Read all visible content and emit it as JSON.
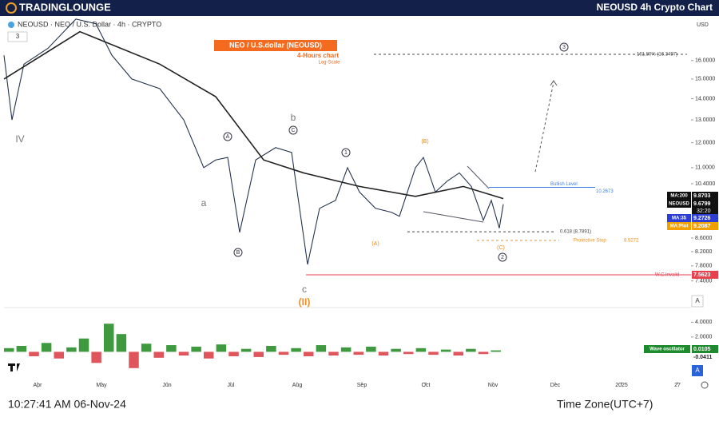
{
  "header": {
    "brand": "TradingLounge",
    "title": "NEOUSD 4h Crypto Chart"
  },
  "chart_data": {
    "type": "line",
    "log_scale": true,
    "legend_text": "NEOUSD · NEO / U.S. Dollar · 4h · CRYPTO",
    "indicator_count": "3",
    "title": "NEO / U.S.dollar (NEOUSD)",
    "subtitle": "4-Hours chart",
    "scale_note": "Log-Scale",
    "axis_unit": "USD",
    "series": [
      {
        "name": "NEOUSD",
        "color": "#26344f",
        "x": [
          0,
          0.8,
          2,
          4.4,
          7.2,
          9.2,
          10.8,
          12.8,
          15.6,
          18,
          20,
          21.2,
          22.4,
          23.6,
          25.2,
          27.2,
          28.8,
          30.4,
          31.6,
          33.2,
          34.4,
          35.6,
          37.2,
          38.8,
          39.6,
          41.2,
          42,
          43.2,
          44.4,
          45.6,
          46.8,
          48,
          48.8,
          49.6,
          50
        ],
        "values": [
          16.3,
          13.0,
          15.8,
          16.7,
          18.5,
          18.2,
          16.3,
          15.0,
          14.5,
          13.0,
          11.0,
          11.3,
          11.4,
          8.77,
          11.3,
          11.8,
          11.6,
          7.84,
          9.54,
          9.81,
          11.0,
          10.1,
          9.54,
          9.41,
          9.28,
          11.0,
          11.4,
          10.1,
          10.5,
          10.8,
          10.3,
          9.15,
          9.81,
          8.9,
          9.68
        ]
      },
      {
        "name": "MA:200",
        "color": "#222222",
        "x": [
          0,
          7.6,
          15.6,
          21.2,
          26,
          30,
          35.6,
          41.2,
          46,
          50
        ],
        "values": [
          15.0,
          17.7,
          15.8,
          14.1,
          11.3,
          10.8,
          10.3,
          9.95,
          10.3,
          9.87
        ]
      }
    ],
    "xlim": [
      0,
      68.8
    ],
    "xticks": [
      {
        "value": 3.36,
        "label": "Apr"
      },
      {
        "value": 9.76,
        "label": "May"
      },
      {
        "value": 16.32,
        "label": "Jun"
      },
      {
        "value": 22.72,
        "label": "Jul"
      },
      {
        "value": 29.36,
        "label": "Aug"
      },
      {
        "value": 35.84,
        "label": "Sep"
      },
      {
        "value": 42.24,
        "label": "Oct"
      },
      {
        "value": 48.96,
        "label": "Nov"
      },
      {
        "value": 55.2,
        "label": "Dec"
      },
      {
        "value": 61.84,
        "label": "2025"
      },
      {
        "value": 67.44,
        "label": "27"
      }
    ],
    "ylim": [
      7.13,
      18.7
    ],
    "yticks": [
      {
        "value": 16,
        "label": "16.0000"
      },
      {
        "value": 15,
        "label": "15.0000"
      },
      {
        "value": 14,
        "label": "14.0000"
      },
      {
        "value": 13,
        "label": "13.0000"
      },
      {
        "value": 12,
        "label": "12.0000"
      },
      {
        "value": 11,
        "label": "11.0000"
      },
      {
        "value": 10.4,
        "label": "10.4000"
      },
      {
        "value": 8.6,
        "label": "8.6000"
      },
      {
        "value": 8.2,
        "label": "8.2000"
      },
      {
        "value": 7.8,
        "label": "7.8000"
      },
      {
        "value": 7.4,
        "label": "7.4000"
      }
    ],
    "levels": [
      {
        "label": "161.80% (16.3497)",
        "value": 16.3497,
        "color": "#444444",
        "dashed": true
      },
      {
        "label": "Bullish Level",
        "value": 10.2673,
        "color": "#3d7fe0",
        "dashed": false
      },
      {
        "label": "0.618 (8.7891)",
        "value": 8.7891,
        "color": "#444444",
        "dashed": true
      },
      {
        "label": "Protective Stop",
        "value": 8.5272,
        "color": "#f0901e",
        "dashed": true
      },
      {
        "label": "W.C.Invalid",
        "value": 7.5623,
        "color": "#e8414e",
        "dashed": false
      }
    ],
    "badges": [
      {
        "name": "MA:200",
        "value": 9.8703,
        "color": "#111111"
      },
      {
        "name": "NEOUSD",
        "value": 9.6799,
        "color": "#111111"
      },
      {
        "name": "MA:35",
        "value": 9.2726,
        "color": "#2d3ed6"
      },
      {
        "name": "MA:Plot",
        "value": 9.2087,
        "color": "#f0a000"
      }
    ],
    "countdown": "32:20",
    "annotations": [
      {
        "text": "IV"
      },
      {
        "text": "a"
      },
      {
        "text": "b"
      },
      {
        "text": "c"
      },
      {
        "text": "(II)"
      },
      {
        "text": "A",
        "circled": true
      },
      {
        "text": "B",
        "circled": true
      },
      {
        "text": "C",
        "circled": true
      },
      {
        "text": "1",
        "circled": true
      },
      {
        "text": "2",
        "circled": true
      },
      {
        "text": "3",
        "circled": true
      },
      {
        "text": "(B)"
      },
      {
        "text": "(A)"
      },
      {
        "text": "(C)"
      }
    ],
    "oscillator": {
      "name": "Wave oscillator",
      "values": [
        0.5,
        0.8,
        -0.6,
        1.2,
        -0.9,
        0.6,
        1.8,
        -1.5,
        3.8,
        2.4,
        -2.2,
        1.1,
        -0.8,
        0.9,
        -0.5,
        0.7,
        -0.9,
        1.0,
        -0.6,
        0.4,
        -0.7,
        0.8,
        -0.4,
        0.5,
        -0.6,
        0.9,
        -0.5,
        0.6,
        -0.4,
        0.7,
        -0.5,
        0.4,
        -0.3,
        0.5,
        -0.4,
        0.3,
        -0.5,
        0.4,
        -0.3,
        0.2
      ],
      "last": [
        0.0105,
        -0.0411
      ],
      "color_up": "#3f9a3f",
      "color_down": "#e0545c",
      "ylim": [
        -2.33,
        5.44
      ],
      "yticks": [
        {
          "value": 4,
          "label": "4.0000"
        },
        {
          "value": 2,
          "label": "2.0000"
        }
      ]
    }
  },
  "footer": {
    "time": "10:27:41 AM 06-Nov-24",
    "timezone": "Time Zone(UTC+7)"
  }
}
